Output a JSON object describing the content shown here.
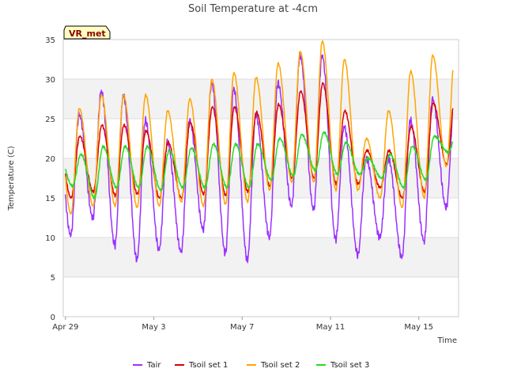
{
  "chart_data": {
    "type": "line",
    "title": "Soil Temperature at -4cm",
    "xlabel": "Time",
    "ylabel": "Temperature (C)",
    "ylim": [
      0,
      35
    ],
    "yticks": [
      0,
      5,
      10,
      15,
      20,
      25,
      30,
      35
    ],
    "x_range_days": [
      -0.1,
      17.8
    ],
    "xticks": [
      {
        "day": 0,
        "label": "Apr 29"
      },
      {
        "day": 4,
        "label": "May 3"
      },
      {
        "day": 8,
        "label": "May 7"
      },
      {
        "day": 12,
        "label": "May 11"
      },
      {
        "day": 16,
        "label": "May 15"
      }
    ],
    "grid": true,
    "legend_position": "bottom",
    "badge": "VR_met",
    "series": [
      {
        "name": "Tair",
        "color": "#9b30ff",
        "min": [
          10.3,
          12.5,
          9.0,
          7.2,
          8.5,
          8.2,
          11.0,
          8.0,
          7.2,
          10.0,
          14.0,
          13.5,
          9.8,
          7.8,
          10.0,
          7.5,
          9.5,
          13.8
        ],
        "max": [
          25.5,
          28.5,
          28.0,
          24.8,
          22.0,
          24.8,
          29.5,
          28.8,
          25.5,
          29.5,
          33.0,
          33.0,
          24.0,
          20.0,
          20.0,
          24.8,
          27.5,
          27.5
        ]
      },
      {
        "name": "Tsoil set 1",
        "color": "#dd0000",
        "min": [
          15.0,
          15.8,
          15.3,
          15.5,
          15.0,
          15.0,
          15.5,
          15.3,
          15.8,
          16.5,
          17.5,
          17.5,
          16.8,
          16.8,
          16.3,
          15.0,
          15.8,
          19.2
        ],
        "max": [
          22.8,
          24.2,
          24.2,
          23.5,
          22.0,
          24.5,
          26.5,
          26.5,
          25.8,
          26.8,
          28.5,
          29.5,
          26.0,
          21.0,
          21.0,
          24.0,
          27.0,
          28.0
        ]
      },
      {
        "name": "Tsoil set 2",
        "color": "#ffa500",
        "min": [
          13.0,
          14.0,
          14.0,
          13.8,
          14.0,
          14.5,
          14.0,
          14.2,
          14.5,
          16.0,
          17.0,
          17.0,
          16.0,
          16.0,
          15.0,
          13.8,
          15.0,
          19.0
        ],
        "max": [
          26.3,
          28.0,
          28.0,
          28.0,
          26.0,
          27.5,
          30.0,
          30.8,
          30.2,
          32.0,
          33.5,
          34.8,
          32.5,
          22.5,
          26.0,
          31.0,
          33.0,
          33.0
        ]
      },
      {
        "name": "Tsoil set 3",
        "color": "#22dd22",
        "min": [
          16.5,
          15.0,
          16.3,
          16.3,
          16.0,
          16.3,
          16.3,
          16.3,
          16.3,
          17.3,
          17.8,
          18.5,
          18.0,
          18.0,
          17.5,
          16.3,
          17.3,
          20.8
        ],
        "max": [
          20.5,
          21.5,
          21.5,
          21.5,
          21.0,
          21.3,
          21.8,
          21.8,
          21.8,
          22.5,
          23.0,
          23.3,
          22.0,
          20.0,
          20.5,
          21.5,
          22.8,
          22.8
        ]
      }
    ]
  }
}
